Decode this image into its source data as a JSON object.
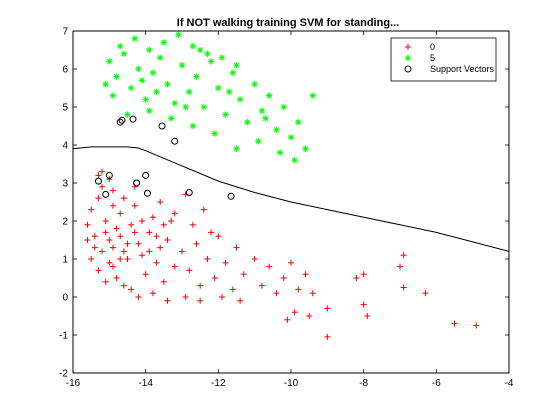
{
  "chart_data": {
    "type": "scatter",
    "title": "If NOT walking training SVM for standing...",
    "xlabel": "",
    "ylabel": "",
    "xlim": [
      -16,
      -4
    ],
    "ylim": [
      -2,
      7
    ],
    "xticks": [
      -16,
      -14,
      -12,
      -10,
      -8,
      -6,
      -4
    ],
    "xtick_labels": [
      "-16",
      "-14",
      "-12",
      "-10",
      "-8",
      "-6",
      "-4"
    ],
    "yticks": [
      -2,
      -1,
      0,
      1,
      2,
      3,
      4,
      5,
      6,
      7
    ],
    "ytick_labels": [
      "-2",
      "-1",
      "0",
      "1",
      "2",
      "3",
      "4",
      "5",
      "6",
      "7"
    ],
    "grid": false,
    "legend_position": "top-right",
    "colors": {
      "class_0": "#ff0000",
      "class_5": "#00ff00",
      "support_vectors": "#000000",
      "boundary": "#000000"
    },
    "series": [
      {
        "name": "0",
        "marker": "plus",
        "points": [
          [
            -15.6,
            1.9
          ],
          [
            -15.5,
            2.3
          ],
          [
            -15.4,
            1.6
          ],
          [
            -15.3,
            2.6
          ],
          [
            -15.2,
            1.2
          ],
          [
            -15.5,
            1.0
          ],
          [
            -15.1,
            2.0
          ],
          [
            -15.0,
            1.5
          ],
          [
            -15.3,
            0.7
          ],
          [
            -15.2,
            2.9
          ],
          [
            -15.0,
            0.9
          ],
          [
            -14.9,
            1.3
          ],
          [
            -14.8,
            1.8
          ],
          [
            -14.7,
            2.2
          ],
          [
            -15.4,
            1.3
          ],
          [
            -15.6,
            1.5
          ],
          [
            -15.1,
            0.4
          ],
          [
            -14.9,
            0.8
          ],
          [
            -14.6,
            1.2
          ],
          [
            -15.3,
            3.2
          ],
          [
            -15.0,
            3.1
          ],
          [
            -14.8,
            0.5
          ],
          [
            -14.7,
            1.6
          ],
          [
            -14.5,
            1.0
          ],
          [
            -14.4,
            1.9
          ],
          [
            -14.3,
            2.4
          ],
          [
            -14.2,
            1.4
          ],
          [
            -14.6,
            0.3
          ],
          [
            -14.1,
            1.1
          ],
          [
            -14.0,
            0.6
          ],
          [
            -13.9,
            1.7
          ],
          [
            -13.8,
            2.1
          ],
          [
            -13.7,
            0.9
          ],
          [
            -13.6,
            1.3
          ],
          [
            -13.5,
            0.4
          ],
          [
            -13.4,
            1.5
          ],
          [
            -13.3,
            2.0
          ],
          [
            -13.2,
            0.8
          ],
          [
            -13.0,
            1.2
          ],
          [
            -12.8,
            0.7
          ],
          [
            -12.6,
            1.4
          ],
          [
            -12.5,
            0.3
          ],
          [
            -12.3,
            1.0
          ],
          [
            -12.1,
            0.5
          ],
          [
            -12.0,
            1.6
          ],
          [
            -11.8,
            0.9
          ],
          [
            -11.6,
            0.2
          ],
          [
            -11.5,
            1.3
          ],
          [
            -11.3,
            0.6
          ],
          [
            -11.0,
            1.0
          ],
          [
            -10.8,
            0.3
          ],
          [
            -10.6,
            0.8
          ],
          [
            -10.4,
            0.1
          ],
          [
            -10.2,
            0.5
          ],
          [
            -10.0,
            0.9
          ],
          [
            -9.8,
            0.2
          ],
          [
            -9.6,
            0.6
          ],
          [
            -9.4,
            0.1
          ],
          [
            -10.1,
            -0.6
          ],
          [
            -9.9,
            -0.4
          ],
          [
            -9.5,
            -0.5
          ],
          [
            -9.0,
            -0.3
          ],
          [
            -9.0,
            -1.05
          ],
          [
            -8.0,
            0.6
          ],
          [
            -8.2,
            0.5
          ],
          [
            -8.0,
            -0.2
          ],
          [
            -7.9,
            -0.5
          ],
          [
            -7.0,
            0.8
          ],
          [
            -6.9,
            1.1
          ],
          [
            -6.9,
            0.25
          ],
          [
            -6.3,
            0.1
          ],
          [
            -5.5,
            -0.7
          ],
          [
            -4.9,
            -0.75
          ],
          [
            -13.6,
            2.5
          ],
          [
            -13.2,
            2.2
          ],
          [
            -12.9,
            2.7
          ],
          [
            -12.7,
            1.9
          ],
          [
            -12.4,
            2.3
          ],
          [
            -12.2,
            1.7
          ],
          [
            -14.9,
            2.8
          ],
          [
            -14.6,
            2.6
          ],
          [
            -14.3,
            2.9
          ],
          [
            -15.2,
            3.3
          ],
          [
            -14.4,
            0.2
          ],
          [
            -14.2,
            0.0
          ],
          [
            -13.8,
            0.1
          ],
          [
            -13.4,
            -0.1
          ],
          [
            -12.9,
            0.0
          ],
          [
            -12.5,
            -0.1
          ],
          [
            -11.9,
            0.0
          ],
          [
            -11.4,
            -0.1
          ],
          [
            -15.1,
            1.7
          ],
          [
            -14.9,
            2.4
          ],
          [
            -14.7,
            1.0
          ],
          [
            -14.5,
            1.4
          ],
          [
            -14.3,
            1.7
          ],
          [
            -14.1,
            2.0
          ],
          [
            -13.9,
            1.2
          ],
          [
            -13.7,
            1.6
          ],
          [
            -13.5,
            1.9
          ]
        ]
      },
      {
        "name": "5",
        "marker": "asterisk",
        "points": [
          [
            -15.0,
            6.2
          ],
          [
            -14.8,
            5.8
          ],
          [
            -14.6,
            6.4
          ],
          [
            -14.4,
            5.5
          ],
          [
            -14.2,
            6.0
          ],
          [
            -14.0,
            5.2
          ],
          [
            -13.8,
            5.9
          ],
          [
            -13.6,
            6.3
          ],
          [
            -13.4,
            5.6
          ],
          [
            -13.2,
            5.1
          ],
          [
            -13.0,
            6.1
          ],
          [
            -12.8,
            5.4
          ],
          [
            -12.6,
            5.8
          ],
          [
            -12.4,
            5.0
          ],
          [
            -12.2,
            6.2
          ],
          [
            -12.0,
            5.5
          ],
          [
            -11.8,
            4.8
          ],
          [
            -11.6,
            5.9
          ],
          [
            -11.4,
            5.2
          ],
          [
            -11.2,
            4.6
          ],
          [
            -11.0,
            5.6
          ],
          [
            -10.8,
            4.9
          ],
          [
            -10.6,
            5.3
          ],
          [
            -10.4,
            4.4
          ],
          [
            -10.2,
            5.0
          ],
          [
            -10.0,
            4.2
          ],
          [
            -9.8,
            4.6
          ],
          [
            -9.6,
            3.9
          ],
          [
            -9.4,
            5.3
          ],
          [
            -9.9,
            3.6
          ],
          [
            -10.3,
            3.8
          ],
          [
            -10.9,
            4.1
          ],
          [
            -11.5,
            3.9
          ],
          [
            -12.1,
            4.3
          ],
          [
            -12.7,
            4.5
          ],
          [
            -13.3,
            4.7
          ],
          [
            -13.9,
            4.9
          ],
          [
            -14.5,
            4.8
          ],
          [
            -14.9,
            5.3
          ],
          [
            -15.1,
            5.6
          ],
          [
            -14.7,
            6.6
          ],
          [
            -14.3,
            6.8
          ],
          [
            -13.9,
            6.5
          ],
          [
            -13.5,
            6.7
          ],
          [
            -13.1,
            6.9
          ],
          [
            -12.7,
            6.6
          ],
          [
            -12.3,
            6.4
          ],
          [
            -11.9,
            6.3
          ],
          [
            -11.5,
            6.1
          ],
          [
            -12.5,
            6.5
          ],
          [
            -13.7,
            5.4
          ],
          [
            -14.1,
            5.7
          ],
          [
            -12.9,
            5.0
          ],
          [
            -11.7,
            5.4
          ],
          [
            -10.7,
            4.7
          ]
        ]
      },
      {
        "name": "Support Vectors",
        "marker": "circle",
        "points": [
          [
            -14.7,
            4.6
          ],
          [
            -14.65,
            4.65
          ],
          [
            -14.35,
            4.68
          ],
          [
            -13.55,
            4.5
          ],
          [
            -13.2,
            4.1
          ],
          [
            -15.3,
            3.05
          ],
          [
            -15.0,
            3.2
          ],
          [
            -14.25,
            3.0
          ],
          [
            -13.95,
            2.73
          ],
          [
            -14.0,
            3.2
          ],
          [
            -12.8,
            2.75
          ],
          [
            -11.65,
            2.65
          ],
          [
            -15.1,
            2.7
          ]
        ]
      }
    ],
    "decision_boundary": {
      "x": [
        -16,
        -15.5,
        -15,
        -14.5,
        -14.2,
        -14.0,
        -13.5,
        -13.0,
        -12.5,
        -12.0,
        -11.0,
        -10.0,
        -9.0,
        -8.0,
        -7.0,
        -6.0,
        -5.0,
        -4.0
      ],
      "y": [
        3.9,
        3.95,
        3.95,
        3.95,
        3.92,
        3.85,
        3.65,
        3.45,
        3.25,
        3.05,
        2.75,
        2.5,
        2.3,
        2.1,
        1.9,
        1.7,
        1.45,
        1.2
      ]
    }
  }
}
